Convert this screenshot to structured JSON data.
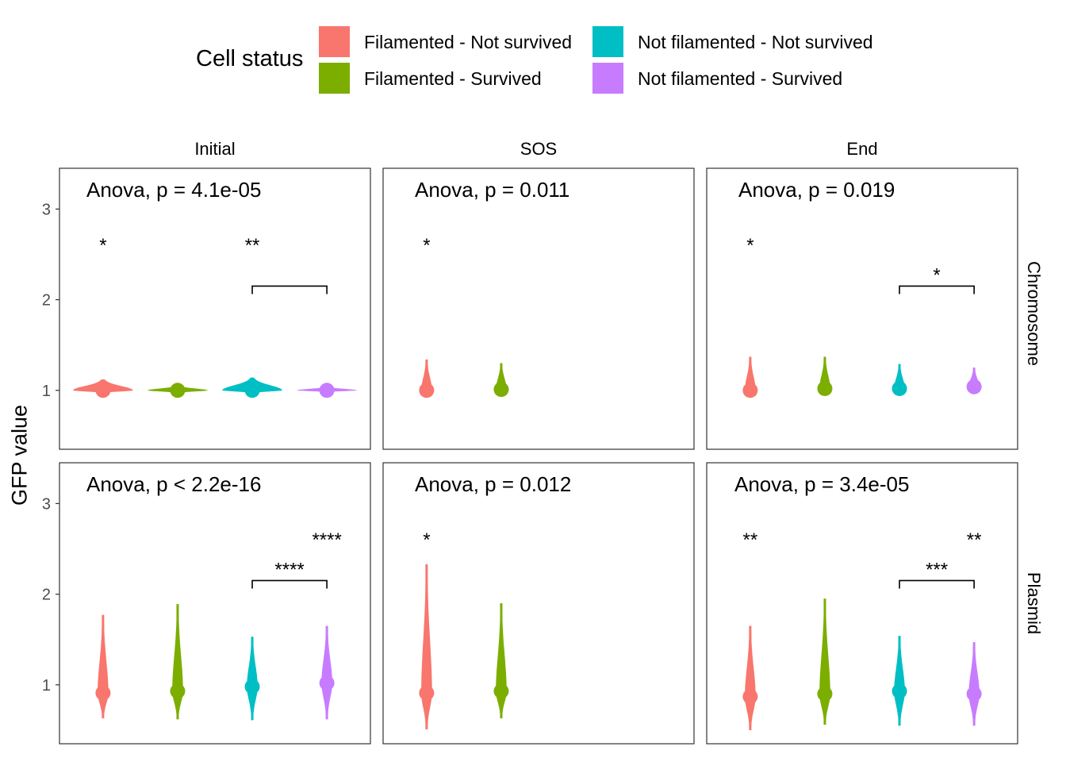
{
  "legend": {
    "title": "Cell status",
    "items": [
      {
        "label": "Filamented - Not survived",
        "color": "#F8766D"
      },
      {
        "label": "Filamented - Survived",
        "color": "#7CAE00"
      },
      {
        "label": "Not filamented - Not survived",
        "color": "#00BFC4"
      },
      {
        "label": "Not filamented - Survived",
        "color": "#C77CFF"
      }
    ]
  },
  "chart_data": {
    "type": "violin",
    "ylabel": "GFP value",
    "xlabel": "",
    "ylim": [
      0.35,
      3.45
    ],
    "yticks": [
      1,
      2,
      3
    ],
    "columns": [
      "Initial",
      "SOS",
      "End"
    ],
    "rows": [
      "Chromosome",
      "Plasmid"
    ],
    "series_names": [
      "Filamented - Not survived",
      "Filamented - Survived",
      "Not filamented - Not survived",
      "Not filamented - Survived"
    ],
    "panels": [
      {
        "row": "Chromosome",
        "column": "Initial",
        "anova": "Anova, p = 4.1e-05",
        "groups": [
          {
            "series": 0,
            "median": 1.0,
            "min": 0.97,
            "max": 1.12,
            "q1": 0.99,
            "q3": 1.01
          },
          {
            "series": 1,
            "median": 1.0,
            "min": 0.97,
            "max": 1.05,
            "q1": 0.99,
            "q3": 1.01
          },
          {
            "series": 2,
            "median": 1.0,
            "min": 0.97,
            "max": 1.14,
            "q1": 0.99,
            "q3": 1.01
          },
          {
            "series": 3,
            "median": 1.0,
            "min": 0.98,
            "max": 1.04,
            "q1": 0.99,
            "q3": 1.02
          }
        ],
        "labels": [
          {
            "group": 0,
            "text": "*",
            "y": 2.6
          },
          {
            "group": 2,
            "text": "**",
            "y": 2.6
          }
        ],
        "brackets": [
          {
            "from": 2,
            "to": 3,
            "y": 2.15,
            "text": ""
          }
        ]
      },
      {
        "row": "Chromosome",
        "column": "SOS",
        "anova": "Anova, p = 0.011",
        "groups": [
          {
            "series": 0,
            "median": 1.0,
            "min": 0.96,
            "max": 1.34,
            "q1": 0.98,
            "q3": 1.04
          },
          {
            "series": 1,
            "median": 1.01,
            "min": 0.97,
            "max": 1.3,
            "q1": 0.99,
            "q3": 1.05
          }
        ],
        "labels": [
          {
            "group": 0,
            "text": "*",
            "y": 2.6
          }
        ],
        "brackets": []
      },
      {
        "row": "Chromosome",
        "column": "End",
        "anova": "Anova, p = 0.019",
        "groups": [
          {
            "series": 0,
            "median": 1.0,
            "min": 0.96,
            "max": 1.37,
            "q1": 0.98,
            "q3": 1.05
          },
          {
            "series": 1,
            "median": 1.02,
            "min": 0.97,
            "max": 1.37,
            "q1": 0.99,
            "q3": 1.07
          },
          {
            "series": 2,
            "median": 1.02,
            "min": 0.97,
            "max": 1.29,
            "q1": 0.99,
            "q3": 1.06
          },
          {
            "series": 3,
            "median": 1.04,
            "min": 0.98,
            "max": 1.25,
            "q1": 1.01,
            "q3": 1.08
          }
        ],
        "labels": [
          {
            "group": 0,
            "text": "*",
            "y": 2.6
          }
        ],
        "brackets": [
          {
            "from": 2,
            "to": 3,
            "y": 2.15,
            "text": "*"
          }
        ]
      },
      {
        "row": "Plasmid",
        "column": "Initial",
        "anova": "Anova, p < 2.2e-16",
        "groups": [
          {
            "series": 0,
            "median": 0.91,
            "min": 0.63,
            "max": 1.77,
            "q1": 0.8,
            "q3": 1.09
          },
          {
            "series": 1,
            "median": 0.93,
            "min": 0.62,
            "max": 1.89,
            "q1": 0.8,
            "q3": 1.15
          },
          {
            "series": 2,
            "median": 0.98,
            "min": 0.61,
            "max": 1.53,
            "q1": 0.85,
            "q3": 1.17
          },
          {
            "series": 3,
            "median": 1.02,
            "min": 0.62,
            "max": 1.65,
            "q1": 0.9,
            "q3": 1.21
          }
        ],
        "labels": [
          {
            "group": 3,
            "text": "****",
            "y": 2.6
          }
        ],
        "brackets": [
          {
            "from": 2,
            "to": 3,
            "y": 2.15,
            "text": "****"
          }
        ]
      },
      {
        "row": "Plasmid",
        "column": "SOS",
        "anova": "Anova, p = 0.012",
        "groups": [
          {
            "series": 0,
            "median": 0.91,
            "min": 0.51,
            "max": 2.33,
            "q1": 0.78,
            "q3": 1.09
          },
          {
            "series": 1,
            "median": 0.93,
            "min": 0.63,
            "max": 1.9,
            "q1": 0.8,
            "q3": 1.16
          }
        ],
        "labels": [
          {
            "group": 0,
            "text": "*",
            "y": 2.6
          }
        ],
        "brackets": []
      },
      {
        "row": "Plasmid",
        "column": "End",
        "anova": "Anova, p = 3.4e-05",
        "groups": [
          {
            "series": 0,
            "median": 0.87,
            "min": 0.5,
            "max": 1.65,
            "q1": 0.75,
            "q3": 1.08
          },
          {
            "series": 1,
            "median": 0.9,
            "min": 0.56,
            "max": 1.95,
            "q1": 0.77,
            "q3": 1.11
          },
          {
            "series": 2,
            "median": 0.93,
            "min": 0.55,
            "max": 1.54,
            "q1": 0.8,
            "q3": 1.15
          },
          {
            "series": 3,
            "median": 0.9,
            "min": 0.55,
            "max": 1.47,
            "q1": 0.77,
            "q3": 1.1
          }
        ],
        "labels": [
          {
            "group": 0,
            "text": "**",
            "y": 2.6
          },
          {
            "group": 3,
            "text": "**",
            "y": 2.6
          }
        ],
        "brackets": [
          {
            "from": 2,
            "to": 3,
            "y": 2.15,
            "text": "***"
          }
        ]
      }
    ]
  }
}
